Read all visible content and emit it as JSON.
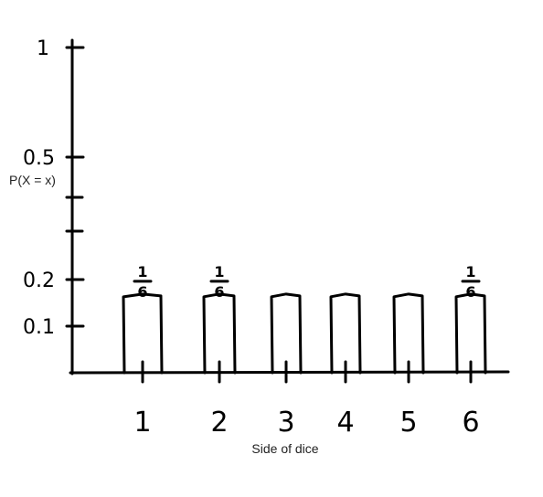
{
  "chart_data": {
    "type": "bar",
    "categories": [
      "1",
      "2",
      "3",
      "4",
      "5",
      "6"
    ],
    "values": [
      0.167,
      0.167,
      0.167,
      0.167,
      0.167,
      0.167
    ],
    "data_labels": [
      {
        "category": "1",
        "numerator": "1",
        "denominator": "6"
      },
      {
        "category": "2",
        "numerator": "1",
        "denominator": "6"
      },
      {
        "category": "6",
        "numerator": "1",
        "denominator": "6"
      }
    ],
    "yticks": [
      {
        "value": 1,
        "label": "1"
      },
      {
        "value": 0.5,
        "label": "0.5"
      },
      {
        "value": 0.2,
        "label": "0.2"
      },
      {
        "value": 0.1,
        "label": "0.1"
      }
    ],
    "xlabel": "Side of dice",
    "ylabel": "P(X = x)",
    "ylim": [
      0,
      1
    ],
    "grid": false,
    "style": "hand-drawn",
    "colors": {
      "ink": "#000000",
      "background": "#ffffff"
    }
  }
}
